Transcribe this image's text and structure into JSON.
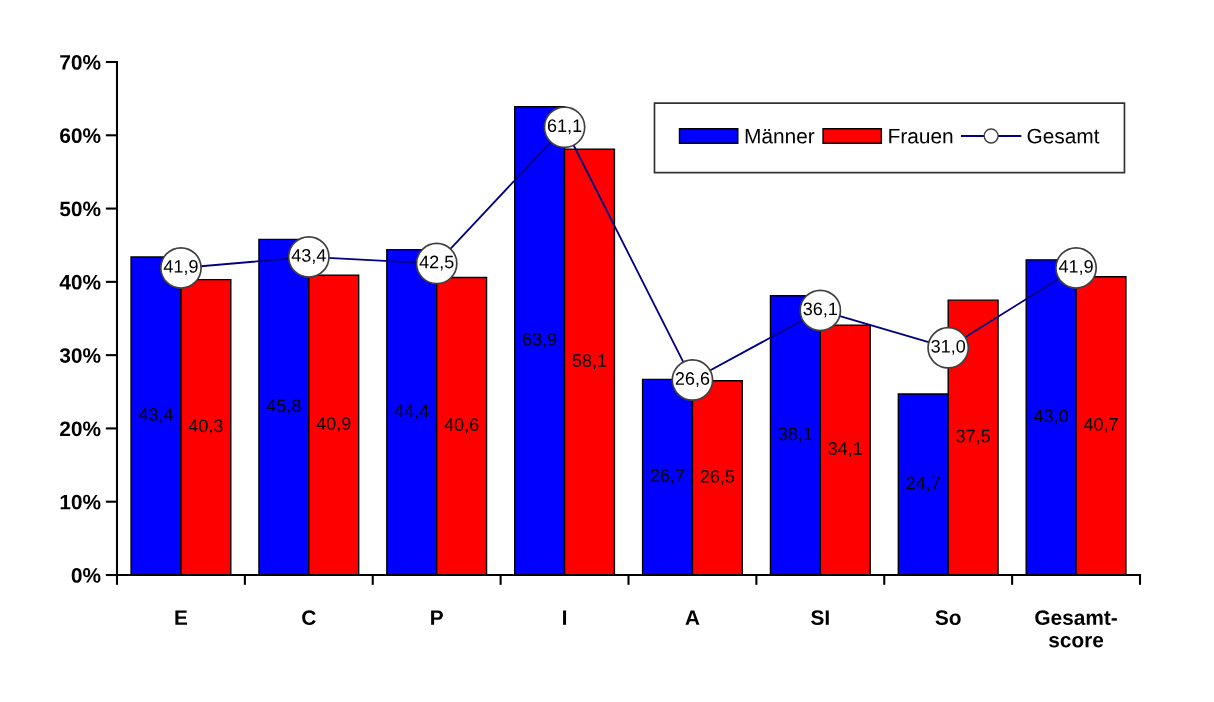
{
  "chart_data": {
    "type": "bar",
    "categories": [
      "E",
      "C",
      "P",
      "I",
      "A",
      "SI",
      "So",
      "Gesamt-\nscore"
    ],
    "series": [
      {
        "name": "Männer",
        "color": "#0000ff",
        "values": [
          43.4,
          45.8,
          44.4,
          63.9,
          26.7,
          38.1,
          24.7,
          43.0
        ],
        "value_labels": [
          "43,4",
          "45,8",
          "44,4",
          "63,9",
          "26,7",
          "38,1",
          "24,7",
          "43,0"
        ]
      },
      {
        "name": "Frauen",
        "color": "#ff0000",
        "values": [
          40.3,
          40.9,
          40.6,
          58.1,
          26.5,
          34.1,
          37.5,
          40.7
        ],
        "value_labels": [
          "40,3",
          "40,9",
          "40,6",
          "58,1",
          "26,5",
          "34,1",
          "37,5",
          "40,7"
        ]
      },
      {
        "name": "Gesamt",
        "color": "#000080",
        "type": "line",
        "marker": "circle",
        "values": [
          41.9,
          43.4,
          42.5,
          61.1,
          26.6,
          36.1,
          31.0,
          41.9
        ],
        "value_labels": [
          "41,9",
          "43,4",
          "42,5",
          "61,1",
          "26,6",
          "36,1",
          "31,0",
          "41,9"
        ]
      }
    ],
    "ylim": [
      0,
      70
    ],
    "yticks": [
      {
        "value": 0,
        "label": "0%"
      },
      {
        "value": 10,
        "label": "10%"
      },
      {
        "value": 20,
        "label": "20%"
      },
      {
        "value": 30,
        "label": "30%"
      },
      {
        "value": 40,
        "label": "40%"
      },
      {
        "value": 50,
        "label": "50%"
      },
      {
        "value": 60,
        "label": "60%"
      },
      {
        "value": 70,
        "label": "70%"
      }
    ],
    "grid": false,
    "legend": "top right"
  }
}
